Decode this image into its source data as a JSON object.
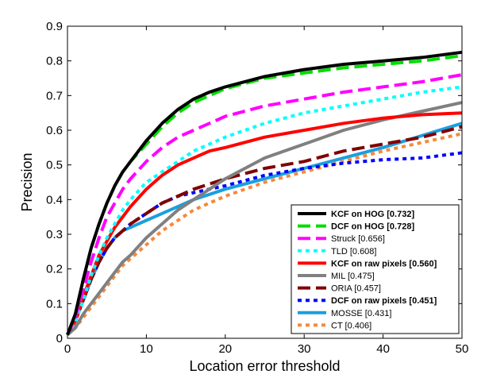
{
  "chart_data": {
    "type": "line",
    "title": "",
    "xlabel": "Location error threshold",
    "ylabel": "Precision",
    "xlim": [
      0,
      50
    ],
    "ylim": [
      0,
      0.9
    ],
    "xticks": [
      0,
      10,
      20,
      30,
      40,
      50
    ],
    "yticks": [
      0,
      0.1,
      0.2,
      0.3,
      0.4,
      0.5,
      0.6,
      0.7,
      0.8,
      0.9
    ],
    "grid": false,
    "legend_position": "bottom-right",
    "x": [
      0,
      1,
      2,
      3,
      4,
      5,
      6,
      7,
      8,
      10,
      12,
      14,
      16,
      18,
      20,
      25,
      30,
      35,
      40,
      45,
      50
    ],
    "series": [
      {
        "name": "KCF on HOG [0.732]",
        "bold": true,
        "color": "#000000",
        "dash": "solid",
        "values": [
          0.01,
          0.07,
          0.17,
          0.26,
          0.33,
          0.39,
          0.44,
          0.48,
          0.51,
          0.57,
          0.62,
          0.66,
          0.69,
          0.71,
          0.725,
          0.755,
          0.775,
          0.79,
          0.8,
          0.81,
          0.825
        ]
      },
      {
        "name": "DCF on HOG [0.728]",
        "bold": true,
        "color": "#00dd00",
        "dash": "dash",
        "values": [
          0.01,
          0.07,
          0.17,
          0.26,
          0.33,
          0.39,
          0.44,
          0.48,
          0.51,
          0.56,
          0.61,
          0.65,
          0.68,
          0.7,
          0.72,
          0.75,
          0.765,
          0.78,
          0.79,
          0.8,
          0.815
        ]
      },
      {
        "name": "Struck [0.656]",
        "bold": false,
        "color": "#ff00ff",
        "dash": "dash",
        "values": [
          0.01,
          0.06,
          0.14,
          0.22,
          0.29,
          0.35,
          0.39,
          0.43,
          0.46,
          0.51,
          0.55,
          0.58,
          0.6,
          0.62,
          0.64,
          0.67,
          0.69,
          0.71,
          0.725,
          0.74,
          0.76
        ]
      },
      {
        "name": "TLD [0.608]",
        "bold": false,
        "color": "#00ffff",
        "dash": "dot",
        "values": [
          0.01,
          0.05,
          0.11,
          0.18,
          0.24,
          0.29,
          0.33,
          0.37,
          0.4,
          0.45,
          0.48,
          0.51,
          0.54,
          0.56,
          0.58,
          0.62,
          0.65,
          0.67,
          0.69,
          0.71,
          0.725
        ]
      },
      {
        "name": "KCF on raw pixels [0.560]",
        "bold": true,
        "color": "#ff0000",
        "dash": "solid",
        "values": [
          0.01,
          0.05,
          0.12,
          0.18,
          0.24,
          0.28,
          0.32,
          0.35,
          0.38,
          0.43,
          0.47,
          0.5,
          0.52,
          0.54,
          0.55,
          0.58,
          0.6,
          0.62,
          0.635,
          0.645,
          0.65
        ]
      },
      {
        "name": "MIL [0.475]",
        "bold": false,
        "color": "#808080",
        "dash": "solid",
        "values": [
          0.01,
          0.03,
          0.07,
          0.1,
          0.13,
          0.16,
          0.19,
          0.22,
          0.24,
          0.29,
          0.33,
          0.37,
          0.4,
          0.43,
          0.46,
          0.52,
          0.56,
          0.6,
          0.63,
          0.655,
          0.68
        ]
      },
      {
        "name": "ORIA [0.457]",
        "bold": false,
        "color": "#800000",
        "dash": "dash",
        "values": [
          0.01,
          0.05,
          0.11,
          0.17,
          0.22,
          0.26,
          0.29,
          0.31,
          0.33,
          0.36,
          0.39,
          0.41,
          0.43,
          0.445,
          0.46,
          0.49,
          0.51,
          0.54,
          0.56,
          0.58,
          0.61
        ]
      },
      {
        "name": "DCF on raw pixels [0.451]",
        "bold": true,
        "color": "#0000ff",
        "dash": "dot",
        "values": [
          0.01,
          0.05,
          0.11,
          0.17,
          0.22,
          0.26,
          0.29,
          0.31,
          0.33,
          0.36,
          0.39,
          0.41,
          0.42,
          0.43,
          0.44,
          0.47,
          0.49,
          0.505,
          0.515,
          0.52,
          0.535
        ]
      },
      {
        "name": "MOSSE [0.431]",
        "bold": false,
        "color": "#1a9fdf",
        "dash": "solid",
        "values": [
          0.01,
          0.05,
          0.11,
          0.17,
          0.22,
          0.26,
          0.29,
          0.31,
          0.32,
          0.34,
          0.36,
          0.38,
          0.4,
          0.415,
          0.43,
          0.46,
          0.49,
          0.52,
          0.55,
          0.585,
          0.62
        ]
      },
      {
        "name": "CT [0.406]",
        "bold": false,
        "color": "#f5893b",
        "dash": "dot",
        "values": [
          0.01,
          0.03,
          0.06,
          0.09,
          0.12,
          0.15,
          0.18,
          0.21,
          0.23,
          0.27,
          0.31,
          0.34,
          0.37,
          0.39,
          0.41,
          0.45,
          0.48,
          0.51,
          0.54,
          0.565,
          0.59
        ]
      }
    ]
  }
}
